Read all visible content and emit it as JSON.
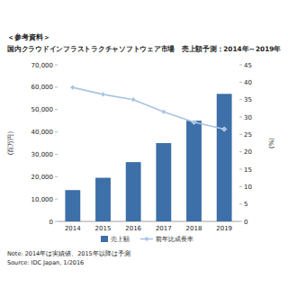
{
  "header": "＜参考資料＞",
  "chart_data": {
    "type": "bar",
    "title": "国内クラウドインフラストラクチャソフトウェア市場　売上額予測：2014年～2019年",
    "ylabel": "(百万円)",
    "y2label": "(%)",
    "categories": [
      "2014",
      "2015",
      "2016",
      "2017",
      "2018",
      "2019"
    ],
    "series": [
      {
        "name": "売上額",
        "type": "bar",
        "color": "#3d6fa8",
        "values": [
          14000,
          19500,
          26500,
          35000,
          45000,
          57000
        ]
      },
      {
        "name": "前年比成長率",
        "type": "line",
        "axis": "y2",
        "color": "#a8c3e2",
        "marker": "diamond",
        "values": [
          38.5,
          36.5,
          35,
          31.5,
          28.5,
          26.5
        ]
      }
    ],
    "ylim": [
      0,
      70000
    ],
    "yticks": [
      0,
      {
        "value": 10000,
        "label": "10,000"
      },
      {
        "value": 20000,
        "label": "20,000"
      },
      {
        "value": 30000,
        "label": "30,000"
      },
      {
        "value": 40000,
        "label": "40,000"
      },
      {
        "value": 50000,
        "label": "50,000"
      },
      {
        "value": 60000,
        "label": "60,000"
      },
      {
        "value": 70000,
        "label": "70,000"
      }
    ],
    "y2lim": [
      0,
      45
    ],
    "y2ticks": [
      0,
      5,
      10,
      15,
      20,
      25,
      30,
      35,
      40,
      45
    ],
    "grid": false,
    "legend": "bottom",
    "annotations": [
      "Note: 2014年は実績値、2015年以降は予測",
      "Source: IDC Japan, 1/2016"
    ]
  }
}
